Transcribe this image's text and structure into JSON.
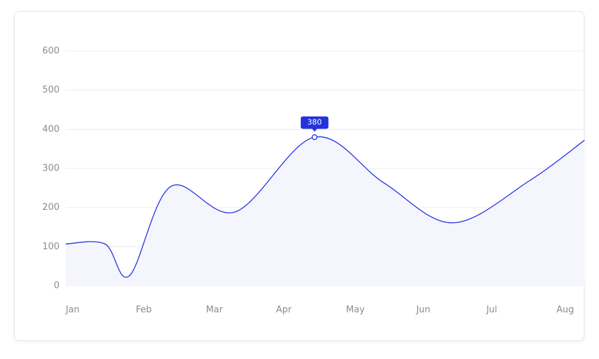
{
  "chart_data": {
    "type": "line",
    "xticks": [
      {
        "value": 0,
        "label": "Jan"
      },
      {
        "value": 1,
        "label": "Feb"
      },
      {
        "value": 2,
        "label": "Mar"
      },
      {
        "value": 3,
        "label": "Apr"
      },
      {
        "value": 4,
        "label": "May"
      },
      {
        "value": 5,
        "label": "Jun"
      },
      {
        "value": 6,
        "label": "Jul"
      },
      {
        "value": 7,
        "label": "Aug"
      }
    ],
    "xlim": [
      0,
      7.4
    ],
    "ylim": [
      0,
      600
    ],
    "yticks": [
      0,
      100,
      200,
      300,
      400,
      500,
      600
    ],
    "grid": true,
    "x": [
      0,
      0.56,
      0.91,
      1.5,
      2.42,
      3.55,
      4.54,
      5.52,
      6.61,
      7.4
    ],
    "series": [
      {
        "color": "#2233dd",
        "fill": "#f5f6fd",
        "values": [
          107,
          107,
          26,
          254,
          189,
          380,
          263,
          161,
          268,
          372
        ],
        "value_labels": [
          null,
          null,
          null,
          null,
          null,
          "380",
          null,
          null,
          null,
          null
        ]
      }
    ]
  }
}
